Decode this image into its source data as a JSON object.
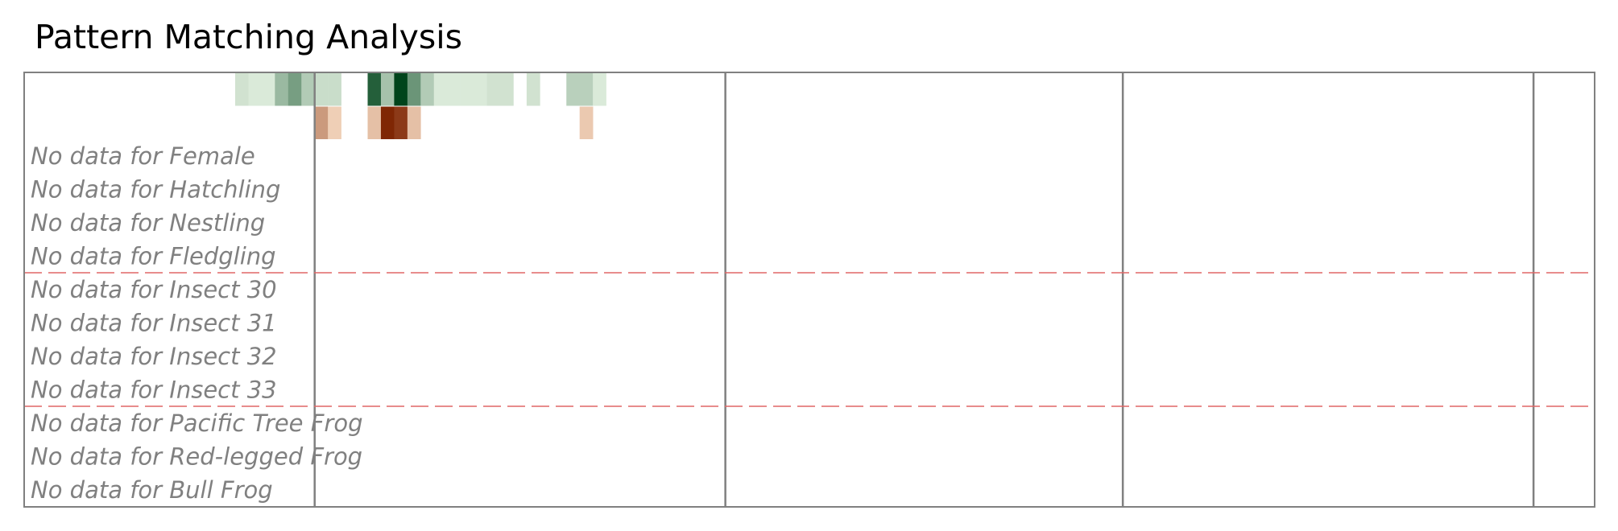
{
  "title": "Pattern Matching Analysis",
  "chart_data": {
    "type": "heatmap",
    "title": "Pattern Matching Analysis",
    "xlabel": "",
    "ylabel": "",
    "grid": false,
    "x_start": 0,
    "x_divider_columns": [
      6,
      37,
      67,
      98
    ],
    "x_end": 103,
    "group_separator_after_rows": [
      5,
      9
    ],
    "rows": [
      {
        "label": "",
        "colormap": "green",
        "cells": [
          {
            "x": 0,
            "value": 0.12
          },
          {
            "x": 1,
            "value": 0.08
          },
          {
            "x": 2,
            "value": 0.08
          },
          {
            "x": 3,
            "value": 0.35
          },
          {
            "x": 4,
            "value": 0.5
          },
          {
            "x": 5,
            "value": 0.25
          },
          {
            "x": 6,
            "value": 0.15
          },
          {
            "x": 7,
            "value": 0.15
          },
          {
            "x": 10,
            "value": 0.85
          },
          {
            "x": 11,
            "value": 0.3
          },
          {
            "x": 12,
            "value": 1.0
          },
          {
            "x": 13,
            "value": 0.55
          },
          {
            "x": 14,
            "value": 0.25
          },
          {
            "x": 15,
            "value": 0.08
          },
          {
            "x": 16,
            "value": 0.08
          },
          {
            "x": 17,
            "value": 0.08
          },
          {
            "x": 18,
            "value": 0.08
          },
          {
            "x": 19,
            "value": 0.12
          },
          {
            "x": 20,
            "value": 0.12
          },
          {
            "x": 22,
            "value": 0.12
          },
          {
            "x": 25,
            "value": 0.22
          },
          {
            "x": 26,
            "value": 0.22
          },
          {
            "x": 27,
            "value": 0.08
          }
        ]
      },
      {
        "label": "",
        "colormap": "orange",
        "cells": [
          {
            "x": 6,
            "value": 0.4
          },
          {
            "x": 7,
            "value": 0.12
          },
          {
            "x": 10,
            "value": 0.2
          },
          {
            "x": 11,
            "value": 1.0
          },
          {
            "x": 12,
            "value": 0.9
          },
          {
            "x": 13,
            "value": 0.2
          },
          {
            "x": 26,
            "value": 0.15
          }
        ]
      },
      {
        "label": "No data for Female",
        "cells": []
      },
      {
        "label": "No data for Hatchling",
        "cells": []
      },
      {
        "label": "No data for Nestling",
        "cells": []
      },
      {
        "label": "No data for Fledgling",
        "cells": []
      },
      {
        "label": "No data for Insect 30",
        "cells": []
      },
      {
        "label": "No data for Insect 31",
        "cells": []
      },
      {
        "label": "No data for Insect 32",
        "cells": []
      },
      {
        "label": "No data for Insect 33",
        "cells": []
      },
      {
        "label": "No data for Pacific Tree Frog",
        "cells": []
      },
      {
        "label": "No data for Red-legged Frog",
        "cells": []
      },
      {
        "label": "No data for Bull Frog",
        "cells": []
      }
    ],
    "colors": {
      "frame": "#808080",
      "divider": "#808080",
      "separator": "#e06666",
      "nodata_text": "#808080",
      "green_low": "#edf8e9",
      "green_high": "#00441b",
      "orange_low": "#fee6ce",
      "orange_high": "#7f2704"
    }
  }
}
